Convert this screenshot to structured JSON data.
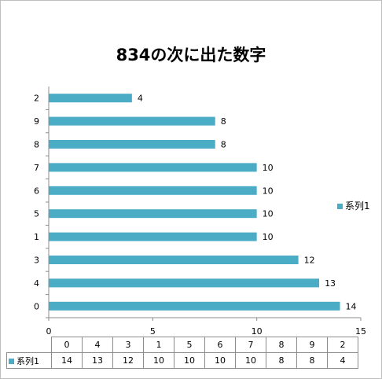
{
  "chart_data": {
    "type": "bar",
    "orientation": "horizontal",
    "title": "834の次に出た数字",
    "categories": [
      "0",
      "4",
      "3",
      "1",
      "5",
      "6",
      "7",
      "8",
      "9",
      "2"
    ],
    "series": [
      {
        "name": "系列1",
        "values": [
          14,
          13,
          12,
          10,
          10,
          10,
          10,
          8,
          8,
          4
        ],
        "color": "#4bacc6"
      }
    ],
    "xlim": [
      0,
      15
    ],
    "xticks": [
      "0",
      "5",
      "10",
      "15"
    ],
    "legend": "right",
    "grid": false,
    "data_table": true
  }
}
